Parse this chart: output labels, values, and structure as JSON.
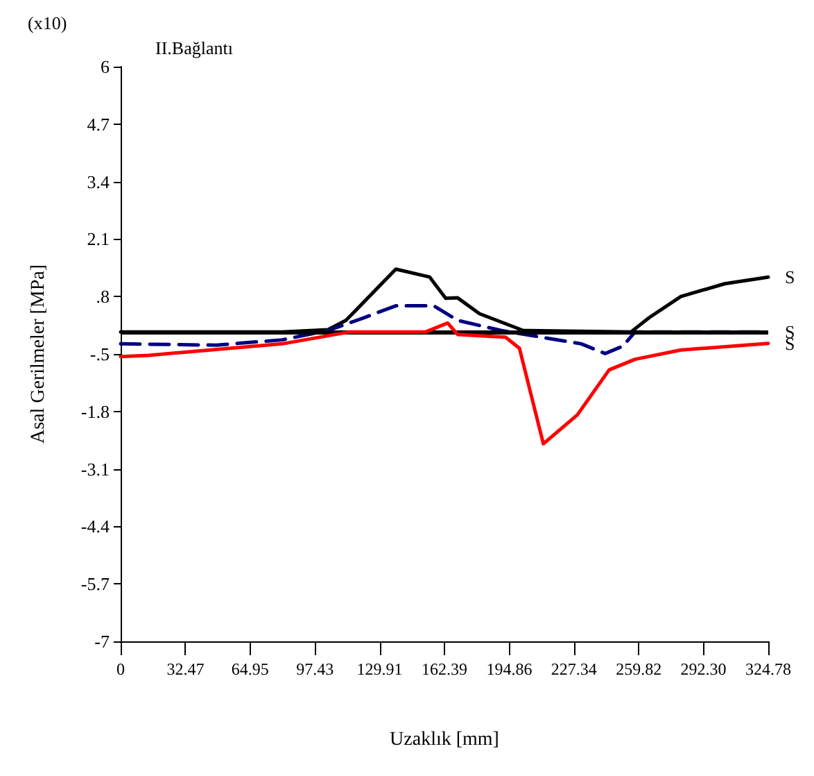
{
  "chart_data": {
    "type": "line",
    "xlabel": "Uzaklık [mm]",
    "ylabel": "Asal Gerilmeler [MPa]",
    "annotations": [
      "(x10)",
      "II.Bağlantı"
    ],
    "xlim": [
      0,
      324.78
    ],
    "xticks": [
      0,
      32.47,
      64.95,
      97.43,
      129.91,
      162.39,
      194.86,
      227.34,
      259.82,
      {
        "value": 292.3,
        "label": "292.30"
      },
      324.78
    ],
    "ylim": [
      -7,
      6
    ],
    "yticks": [
      -7,
      -5.7,
      -4.4,
      -3.1,
      -1.8,
      {
        "value": -0.5,
        "label": "-.5"
      },
      {
        "value": 0.8,
        "label": ".8"
      },
      2.1,
      3.4,
      4.7,
      6
    ],
    "grid": false,
    "legend": false,
    "marker": "none",
    "ref_lines": [
      {
        "axis": "y",
        "value": 0,
        "color": "#000000"
      }
    ],
    "series": [
      {
        "name": "S",
        "color": "#000000",
        "line_style": "solid",
        "x": [
          0,
          81,
          104,
          113,
          138,
          155,
          163,
          169,
          180,
          202,
          256,
          265,
          281,
          303,
          324.78
        ],
        "values": [
          0,
          0,
          0.05,
          0.26,
          1.42,
          1.24,
          0.76,
          0.77,
          0.41,
          0.03,
          0,
          0.32,
          0.8,
          1.09,
          1.24
        ]
      },
      {
        "name": "S",
        "color": "#000080",
        "line_style": "dashed",
        "x": [
          0,
          48,
          81,
          104,
          122,
          138,
          157,
          169,
          191,
          231,
          243,
          252,
          258,
          324.78
        ],
        "values": [
          -0.27,
          -0.3,
          -0.18,
          0.03,
          0.32,
          0.59,
          0.59,
          0.26,
          0.03,
          -0.27,
          -0.49,
          -0.32,
          0,
          0
        ]
      },
      {
        "name": "S",
        "color": "#ff0000",
        "line_style": "solid",
        "x": [
          0,
          14,
          81,
          115,
          153,
          164,
          169,
          193,
          200,
          212,
          229,
          245,
          258,
          281,
          324.78
        ],
        "values": [
          -0.56,
          -0.53,
          -0.27,
          0,
          0,
          0.2,
          -0.06,
          -0.12,
          -0.37,
          -2.53,
          -1.88,
          -0.86,
          -0.62,
          -0.41,
          -0.26
        ]
      }
    ]
  }
}
